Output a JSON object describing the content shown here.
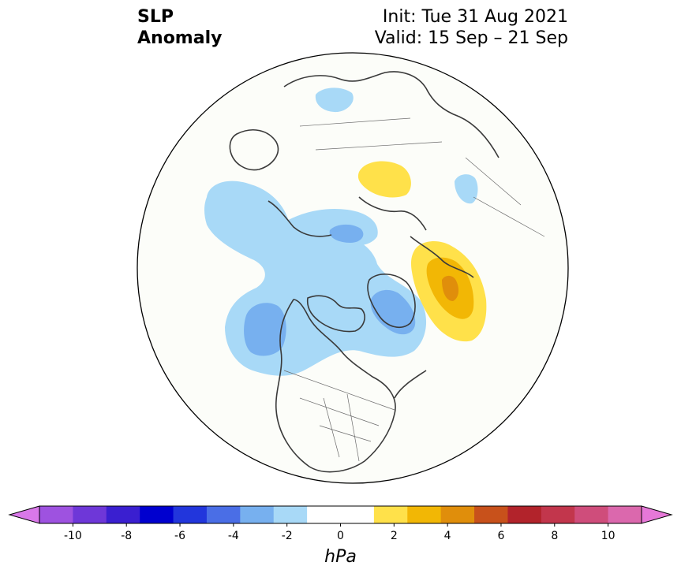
{
  "header": {
    "title_line1": "SLP",
    "title_line2": "Anomaly",
    "init_label": "Init: Tue 31 Aug 2021",
    "valid_label": "Valid: 15 Sep – 21 Sep"
  },
  "map": {
    "projection": "north-polar-stereographic",
    "background_color": "#fcfdf9",
    "coastline_color": "#3a3a3a",
    "anomaly_regions": [
      {
        "name": "north-pacific-low",
        "level": -2
      },
      {
        "name": "north-pacific-low-core",
        "level": -3
      },
      {
        "name": "greenland-low",
        "level": -2
      },
      {
        "name": "greenland-low-core",
        "level": -3
      },
      {
        "name": "siberian-low",
        "level": -2
      },
      {
        "name": "siberian-low-core",
        "level": -3
      },
      {
        "name": "barents-high",
        "level": 2
      },
      {
        "name": "east-siberian-high",
        "level": 2
      },
      {
        "name": "east-siberian-high-core",
        "level": 3
      },
      {
        "name": "east-siberian-high-peak",
        "level": 4
      },
      {
        "name": "asia-weak-high",
        "level": 2
      },
      {
        "name": "asia-weak-low",
        "level": -2
      }
    ]
  },
  "colorbar": {
    "units": "hPa",
    "ticks": [
      "-10",
      "-8",
      "-6",
      "-4",
      "-2",
      "0",
      "2",
      "4",
      "6",
      "8",
      "10"
    ],
    "colors": [
      "#9e52e0",
      "#6e37d8",
      "#3a1fd0",
      "#0000cf",
      "#2236dc",
      "#4a6ee6",
      "#77b0ef",
      "#a8d9f7",
      "#ffffff",
      "#ffffff",
      "#ffe14a",
      "#f2b705",
      "#e08e0b",
      "#c8511b",
      "#b2232b",
      "#c2364c",
      "#cf4d7b",
      "#db68ad"
    ],
    "extend_low_color": "#d978e9",
    "extend_high_color": "#e678d8"
  }
}
